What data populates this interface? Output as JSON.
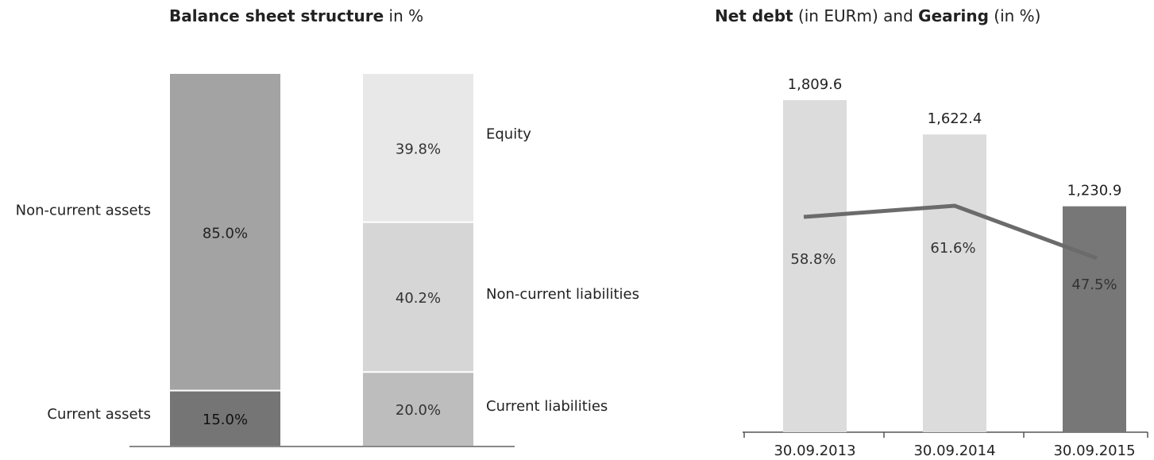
{
  "chart_data": [
    {
      "type": "bar",
      "stacked": true,
      "title_bold": "Balance sheet structure",
      "title_rest": " in %",
      "unit": "%",
      "stacks": [
        {
          "segments": [
            {
              "name": "Current assets",
              "value": 15.0,
              "label": "15.0%",
              "color": "#757575",
              "label_color": "#111111"
            },
            {
              "name": "Non-current assets",
              "value": 85.0,
              "label": "85.0%",
              "color": "#a3a3a3",
              "label_color": "#222222"
            }
          ]
        },
        {
          "segments": [
            {
              "name": "Current liabilities",
              "value": 20.0,
              "label": "20.0%",
              "color": "#bdbdbd",
              "label_color": "#333333"
            },
            {
              "name": "Non-current liabilities",
              "value": 40.2,
              "label": "40.2%",
              "color": "#d6d6d6",
              "label_color": "#333333"
            },
            {
              "name": "Equity",
              "value": 39.8,
              "label": "39.8%",
              "color": "#e8e8e8",
              "label_color": "#333333"
            }
          ]
        }
      ]
    },
    {
      "type": "bar+line",
      "title_parts": [
        {
          "text": "Net debt",
          "bold": true
        },
        {
          "text": " (in EURm) and ",
          "bold": false
        },
        {
          "text": "Gearing",
          "bold": true
        },
        {
          "text": " (in %)",
          "bold": false
        }
      ],
      "categories": [
        "30.09.2013",
        "30.09.2014",
        "30.09.2015"
      ],
      "series": [
        {
          "name": "Net debt",
          "values": [
            1809.6,
            1622.4,
            1230.9
          ],
          "labels": [
            "1,809.6",
            "1,622.4",
            "1,230.9"
          ],
          "colors": [
            "#dcdcdc",
            "#dcdcdc",
            "#777777"
          ]
        },
        {
          "name": "Gearing",
          "values": [
            58.8,
            61.6,
            47.5
          ],
          "labels": [
            "58.8%",
            "61.6%",
            "47.5%"
          ],
          "color": "#6b6b6b"
        }
      ],
      "ylim": [
        0,
        2000
      ],
      "gearing_range": [
        0,
        100
      ]
    }
  ]
}
